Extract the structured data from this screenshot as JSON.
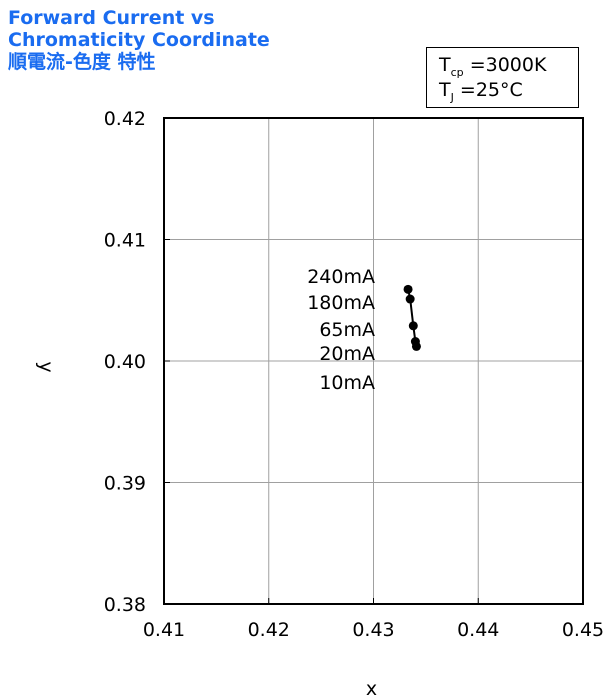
{
  "title": {
    "line1": "Forward Current vs",
    "line2": "Chromaticity Coordinate",
    "line3": "順電流-色度 特性"
  },
  "conditions": {
    "tcp_symbol": "T",
    "tcp_sub": "cp",
    "tcp_value": "=3000K",
    "tj_symbol": "T",
    "tj_sub": "J",
    "tj_value": "=25°C"
  },
  "chart_data": {
    "type": "line",
    "xlabel": "x",
    "ylabel": "y",
    "xlim": [
      0.41,
      0.45
    ],
    "ylim": [
      0.38,
      0.42
    ],
    "xticks": [
      "0.41",
      "0.42",
      "0.43",
      "0.44",
      "0.45"
    ],
    "yticks": [
      "0.38",
      "0.39",
      "0.40",
      "0.41",
      "0.42"
    ],
    "grid": true,
    "series": [
      {
        "points": [
          {
            "label": "240mA",
            "x": 0.4333,
            "y": 0.4059
          },
          {
            "label": "180mA",
            "x": 0.4335,
            "y": 0.4051
          },
          {
            "label": "65mA",
            "x": 0.4338,
            "y": 0.4029
          },
          {
            "label": "20mA",
            "x": 0.434,
            "y": 0.4016
          },
          {
            "label": "10mA",
            "x": 0.4341,
            "y": 0.4012
          }
        ]
      }
    ],
    "point_labels": [
      "240mA",
      "180mA",
      "65mA",
      "20mA",
      "10mA"
    ]
  }
}
